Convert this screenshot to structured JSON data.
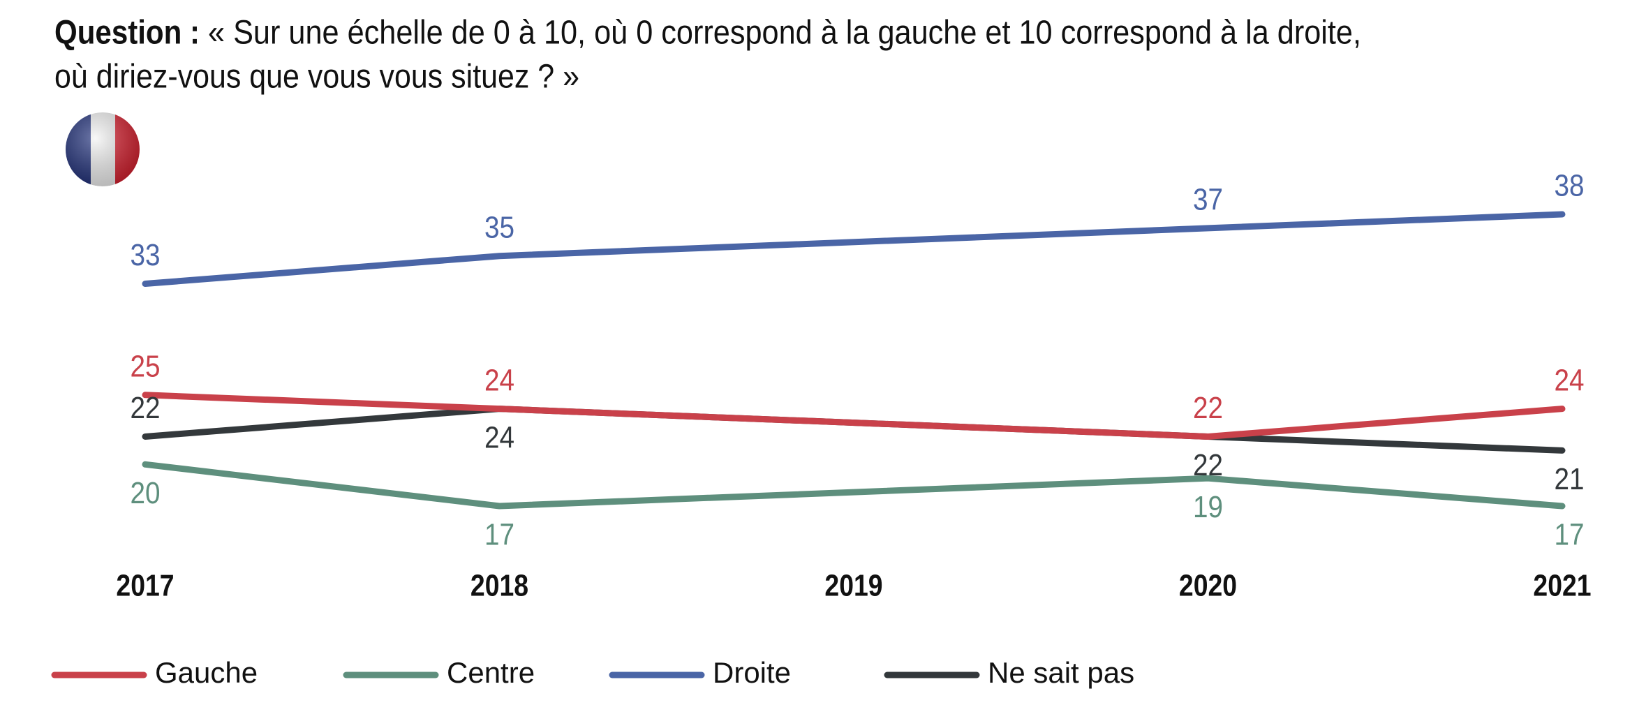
{
  "chart_data": {
    "type": "line",
    "title_label": "Question :",
    "title_lines": [
      "« Sur une échelle de 0 à 10, où 0 correspond à la gauche et 10 correspond à la droite,",
      "où diriez-vous que vous vous situez ? »"
    ],
    "x": [
      2017,
      2018,
      2020,
      2021
    ],
    "xlim": [
      2017,
      2021
    ],
    "xticks": [
      2017,
      2018,
      2019,
      2020,
      2021
    ],
    "series": [
      {
        "name": "Gauche",
        "color": "#c9414a",
        "values": [
          25,
          24,
          22,
          24
        ]
      },
      {
        "name": "Centre",
        "color": "#5e8f7d",
        "values": [
          20,
          17,
          19,
          17
        ]
      },
      {
        "name": "Droite",
        "color": "#4a65a6",
        "values": [
          33,
          35,
          37,
          38
        ]
      },
      {
        "name": "Ne sait pas",
        "color": "#33383b",
        "values": [
          22,
          24,
          22,
          21
        ]
      }
    ]
  }
}
